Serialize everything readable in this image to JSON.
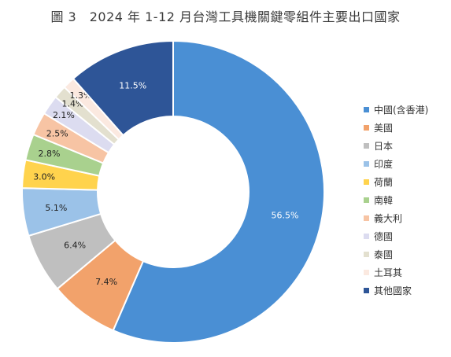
{
  "chart_data": {
    "type": "pie",
    "title": "圖 3　2024 年 1-12 月台灣工具機關鍵零組件主要出口國家",
    "categories": [
      "中國(含香港)",
      "美國",
      "日本",
      "印度",
      "荷蘭",
      "南韓",
      "義大利",
      "德國",
      "泰國",
      "土耳其",
      "其他國家"
    ],
    "values": [
      56.5,
      7.4,
      6.4,
      5.1,
      3.0,
      2.8,
      2.5,
      2.1,
      1.4,
      1.3,
      11.5
    ],
    "labels": [
      "56.5%",
      "7.4%",
      "6.4%",
      "5.1%",
      "3.0%",
      "2.8%",
      "2.5%",
      "2.1%",
      "1.4%",
      "1.3%",
      "11.5%"
    ],
    "colors": [
      "#4a8fd4",
      "#f2a26b",
      "#bfbfbf",
      "#9bc2e8",
      "#ffd34d",
      "#a9d18e",
      "#f7c4a4",
      "#dcdcf0",
      "#e3e0cf",
      "#fbe9e0",
      "#2e5597"
    ],
    "light_label": [
      true,
      false,
      false,
      false,
      false,
      false,
      false,
      false,
      false,
      false,
      true
    ],
    "style": "donut",
    "legend": "right"
  }
}
